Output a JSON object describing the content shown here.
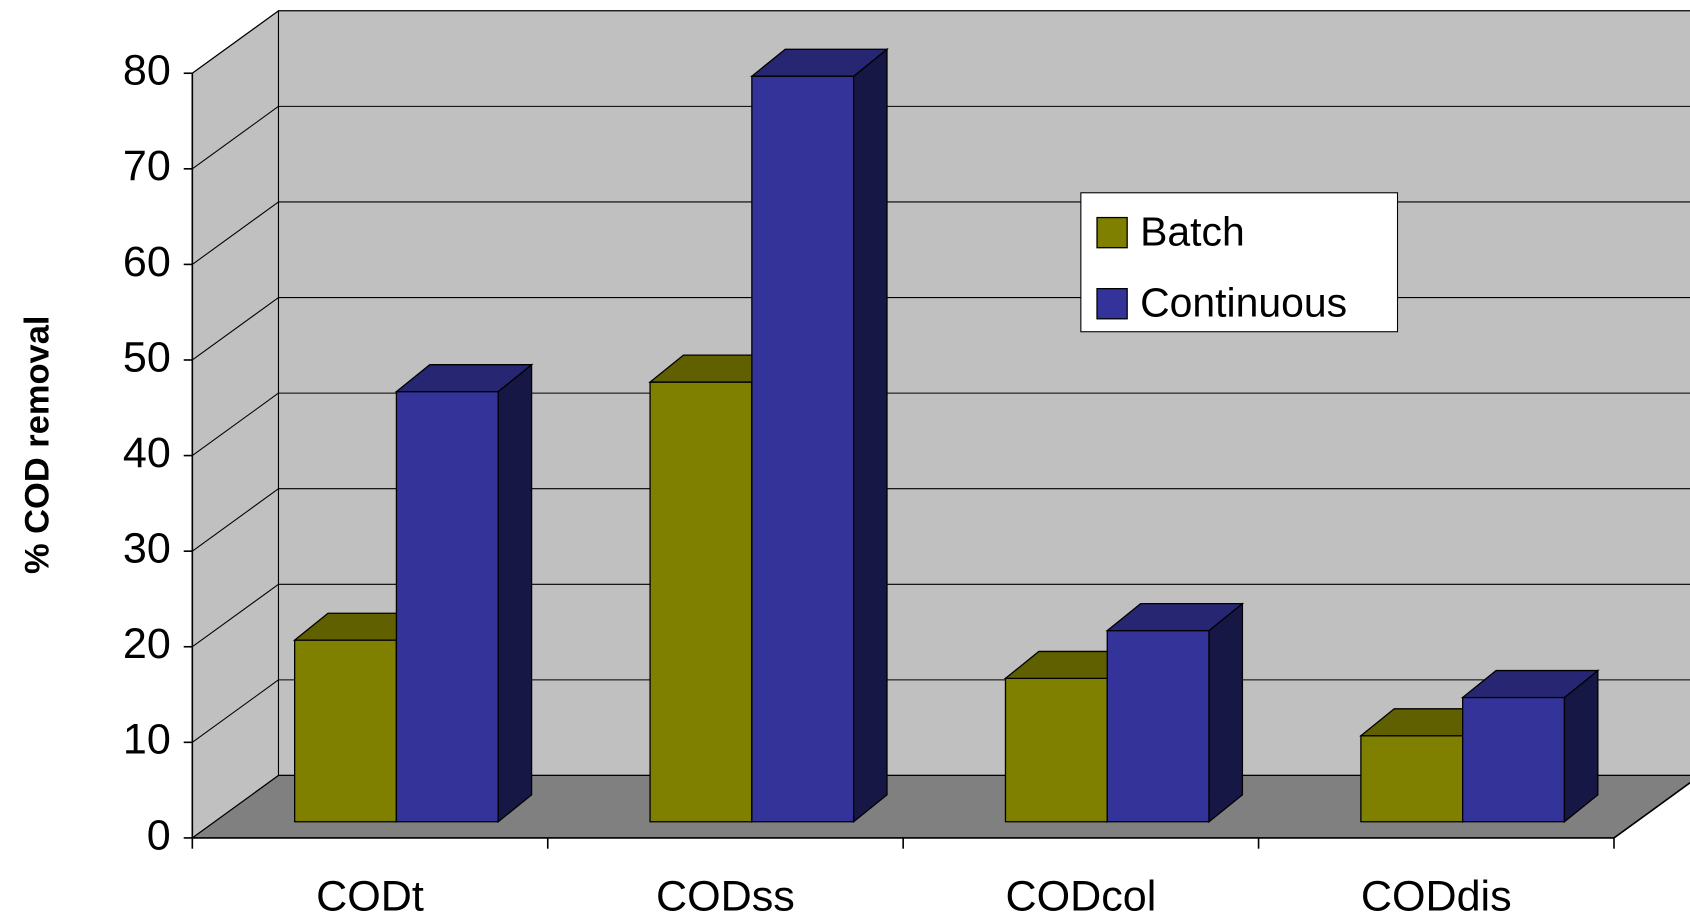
{
  "chart_data": {
    "type": "bar3d",
    "y_label": "% COD removal",
    "categories": [
      "CODt",
      "CODss",
      "CODcol",
      "CODdis"
    ],
    "series": [
      {
        "name": "Batch",
        "color": "#808000",
        "values": [
          19,
          46,
          15,
          9
        ]
      },
      {
        "name": "Continuous",
        "color": "#333399",
        "values": [
          45,
          78,
          20,
          13
        ]
      }
    ],
    "ylim": [
      0,
      80
    ],
    "yticks": [
      0,
      10,
      20,
      30,
      40,
      50,
      60,
      70,
      80
    ],
    "grid": true,
    "legend": "upper right"
  }
}
